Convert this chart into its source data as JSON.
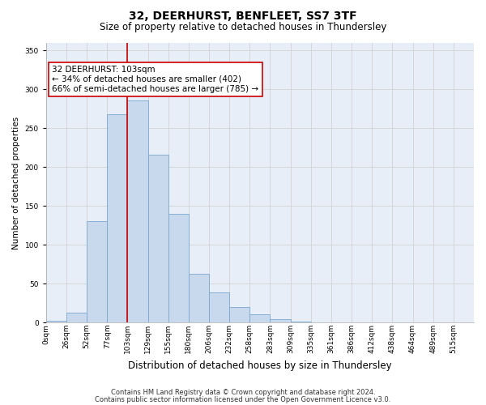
{
  "title": "32, DEERHURST, BENFLEET, SS7 3TF",
  "subtitle": "Size of property relative to detached houses in Thundersley",
  "xlabel": "Distribution of detached houses by size in Thundersley",
  "ylabel": "Number of detached properties",
  "categories": [
    "0sqm",
    "26sqm",
    "52sqm",
    "77sqm",
    "103sqm",
    "129sqm",
    "155sqm",
    "180sqm",
    "206sqm",
    "232sqm",
    "258sqm",
    "283sqm",
    "309sqm",
    "335sqm",
    "361sqm",
    "386sqm",
    "412sqm",
    "438sqm",
    "464sqm",
    "489sqm",
    "515sqm"
  ],
  "values": [
    2,
    13,
    130,
    268,
    286,
    216,
    140,
    63,
    39,
    20,
    11,
    5,
    1,
    0,
    0,
    0,
    0,
    0,
    0,
    0,
    0
  ],
  "bar_color": "#c8d9ed",
  "bar_edge_color": "#7aa8d0",
  "vline_x_index": 4,
  "vline_color": "#cc0000",
  "annotation_text": "32 DEERHURST: 103sqm\n← 34% of detached houses are smaller (402)\n66% of semi-detached houses are larger (785) →",
  "annotation_box_color": "#ffffff",
  "annotation_box_edge": "#cc0000",
  "ylim": [
    0,
    360
  ],
  "yticks": [
    0,
    50,
    100,
    150,
    200,
    250,
    300,
    350
  ],
  "grid_color": "#cccccc",
  "bg_color": "#e8eef8",
  "footer1": "Contains HM Land Registry data © Crown copyright and database right 2024.",
  "footer2": "Contains public sector information licensed under the Open Government Licence v3.0.",
  "title_fontsize": 10,
  "subtitle_fontsize": 8.5,
  "xlabel_fontsize": 8.5,
  "ylabel_fontsize": 7.5,
  "tick_fontsize": 6.5,
  "annotation_fontsize": 7.5,
  "footer_fontsize": 6.0
}
